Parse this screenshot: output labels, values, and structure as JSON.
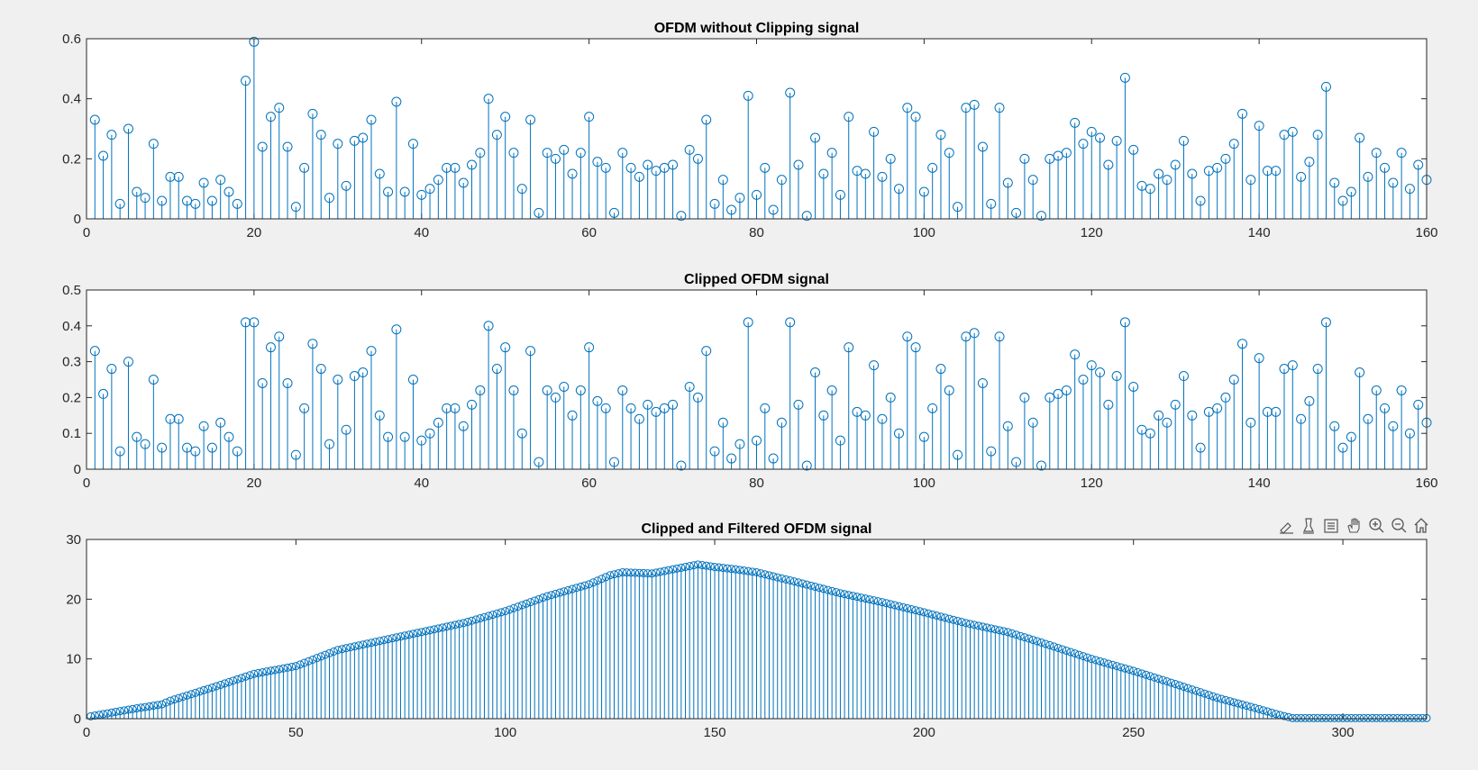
{
  "figure": {
    "background": "#f0f0f0",
    "stem_color": "#0072bd",
    "axes_toolbar": {
      "icons": [
        "brush-icon",
        "data-tips-icon",
        "legend-icon",
        "pan-hand-icon",
        "zoom-in-icon",
        "zoom-out-icon",
        "home-icon"
      ]
    }
  },
  "chart_data": [
    {
      "type": "stem",
      "title": "OFDM without Clipping signal",
      "xlabel": "",
      "ylabel": "",
      "xlim": [
        0,
        160
      ],
      "ylim": [
        0,
        0.6
      ],
      "xticks": [
        0,
        20,
        40,
        60,
        80,
        100,
        120,
        140,
        160
      ],
      "yticks": [
        0,
        0.2,
        0.4,
        0.6
      ],
      "ytick_labels": [
        "0",
        "0.2",
        "0.4",
        "0.6"
      ],
      "x_start": 1,
      "values": [
        0.33,
        0.21,
        0.28,
        0.05,
        0.3,
        0.09,
        0.07,
        0.25,
        0.06,
        0.14,
        0.14,
        0.06,
        0.05,
        0.12,
        0.06,
        0.13,
        0.09,
        0.05,
        0.46,
        0.59,
        0.24,
        0.34,
        0.37,
        0.24,
        0.04,
        0.17,
        0.35,
        0.28,
        0.07,
        0.25,
        0.11,
        0.26,
        0.27,
        0.33,
        0.15,
        0.09,
        0.39,
        0.09,
        0.25,
        0.08,
        0.1,
        0.13,
        0.17,
        0.17,
        0.12,
        0.18,
        0.22,
        0.4,
        0.28,
        0.34,
        0.22,
        0.1,
        0.33,
        0.02,
        0.22,
        0.2,
        0.23,
        0.15,
        0.22,
        0.34,
        0.19,
        0.17,
        0.02,
        0.22,
        0.17,
        0.14,
        0.18,
        0.16,
        0.17,
        0.18,
        0.01,
        0.23,
        0.2,
        0.33,
        0.05,
        0.13,
        0.03,
        0.07,
        0.41,
        0.08,
        0.17,
        0.03,
        0.13,
        0.42,
        0.18,
        0.01,
        0.27,
        0.15,
        0.22,
        0.08,
        0.34,
        0.16,
        0.15,
        0.29,
        0.14,
        0.2,
        0.1,
        0.37,
        0.34,
        0.09,
        0.17,
        0.28,
        0.22,
        0.04,
        0.37,
        0.38,
        0.24,
        0.05,
        0.37,
        0.12,
        0.02,
        0.2,
        0.13,
        0.01,
        0.2,
        0.21,
        0.22,
        0.32,
        0.25,
        0.29,
        0.27,
        0.18,
        0.26,
        0.47,
        0.23,
        0.11,
        0.1,
        0.15,
        0.13,
        0.18,
        0.26,
        0.15,
        0.06,
        0.16,
        0.17,
        0.2,
        0.25,
        0.35,
        0.13,
        0.31,
        0.16,
        0.16,
        0.28,
        0.29,
        0.14,
        0.19,
        0.28,
        0.44,
        0.12,
        0.06,
        0.09,
        0.27,
        0.14,
        0.22,
        0.17,
        0.12,
        0.22,
        0.1,
        0.18,
        0.13
      ]
    },
    {
      "type": "stem",
      "title": "Clipped OFDM signal",
      "xlabel": "",
      "ylabel": "",
      "xlim": [
        0,
        160
      ],
      "ylim": [
        0,
        0.5
      ],
      "xticks": [
        0,
        20,
        40,
        60,
        80,
        100,
        120,
        140,
        160
      ],
      "yticks": [
        0,
        0.1,
        0.2,
        0.3,
        0.4,
        0.5
      ],
      "ytick_labels": [
        "0",
        "0.1",
        "0.2",
        "0.3",
        "0.4",
        "0.5"
      ],
      "x_start": 1,
      "values": [
        0.33,
        0.21,
        0.28,
        0.05,
        0.3,
        0.09,
        0.07,
        0.25,
        0.06,
        0.14,
        0.14,
        0.06,
        0.05,
        0.12,
        0.06,
        0.13,
        0.09,
        0.05,
        0.41,
        0.41,
        0.24,
        0.34,
        0.37,
        0.24,
        0.04,
        0.17,
        0.35,
        0.28,
        0.07,
        0.25,
        0.11,
        0.26,
        0.27,
        0.33,
        0.15,
        0.09,
        0.39,
        0.09,
        0.25,
        0.08,
        0.1,
        0.13,
        0.17,
        0.17,
        0.12,
        0.18,
        0.22,
        0.4,
        0.28,
        0.34,
        0.22,
        0.1,
        0.33,
        0.02,
        0.22,
        0.2,
        0.23,
        0.15,
        0.22,
        0.34,
        0.19,
        0.17,
        0.02,
        0.22,
        0.17,
        0.14,
        0.18,
        0.16,
        0.17,
        0.18,
        0.01,
        0.23,
        0.2,
        0.33,
        0.05,
        0.13,
        0.03,
        0.07,
        0.41,
        0.08,
        0.17,
        0.03,
        0.13,
        0.41,
        0.18,
        0.01,
        0.27,
        0.15,
        0.22,
        0.08,
        0.34,
        0.16,
        0.15,
        0.29,
        0.14,
        0.2,
        0.1,
        0.37,
        0.34,
        0.09,
        0.17,
        0.28,
        0.22,
        0.04,
        0.37,
        0.38,
        0.24,
        0.05,
        0.37,
        0.12,
        0.02,
        0.2,
        0.13,
        0.01,
        0.2,
        0.21,
        0.22,
        0.32,
        0.25,
        0.29,
        0.27,
        0.18,
        0.26,
        0.41,
        0.23,
        0.11,
        0.1,
        0.15,
        0.13,
        0.18,
        0.26,
        0.15,
        0.06,
        0.16,
        0.17,
        0.2,
        0.25,
        0.35,
        0.13,
        0.31,
        0.16,
        0.16,
        0.28,
        0.29,
        0.14,
        0.19,
        0.28,
        0.41,
        0.12,
        0.06,
        0.09,
        0.27,
        0.14,
        0.22,
        0.17,
        0.12,
        0.22,
        0.1,
        0.18,
        0.13
      ]
    },
    {
      "type": "stem",
      "title": "Clipped and Filtered OFDM signal",
      "xlabel": "",
      "ylabel": "",
      "xlim": [
        0,
        320
      ],
      "ylim": [
        0,
        30
      ],
      "xticks": [
        0,
        50,
        100,
        150,
        200,
        250,
        300
      ],
      "yticks": [
        0,
        10,
        20,
        30
      ],
      "ytick_labels": [
        "0",
        "10",
        "20",
        "30"
      ],
      "x_start": 1,
      "envelope": [
        [
          1,
          0.4
        ],
        [
          10,
          1.5
        ],
        [
          18,
          2.4
        ],
        [
          20,
          3.0
        ],
        [
          30,
          5.2
        ],
        [
          40,
          7.5
        ],
        [
          50,
          8.8
        ],
        [
          60,
          11.5
        ],
        [
          70,
          13.0
        ],
        [
          80,
          14.5
        ],
        [
          90,
          16.0
        ],
        [
          100,
          18.0
        ],
        [
          110,
          20.5
        ],
        [
          120,
          22.5
        ],
        [
          125,
          24.0
        ],
        [
          128,
          24.5
        ],
        [
          135,
          24.3
        ],
        [
          140,
          25.0
        ],
        [
          146,
          25.8
        ],
        [
          150,
          25.4
        ],
        [
          155,
          25.0
        ],
        [
          160,
          24.5
        ],
        [
          170,
          22.8
        ],
        [
          180,
          21.0
        ],
        [
          190,
          19.5
        ],
        [
          200,
          17.8
        ],
        [
          210,
          16.0
        ],
        [
          220,
          14.5
        ],
        [
          230,
          12.3
        ],
        [
          240,
          10.0
        ],
        [
          250,
          8.0
        ],
        [
          260,
          5.8
        ],
        [
          270,
          3.5
        ],
        [
          280,
          1.6
        ],
        [
          285,
          0.6
        ],
        [
          288,
          0.1
        ],
        [
          320,
          0.1
        ]
      ]
    }
  ]
}
